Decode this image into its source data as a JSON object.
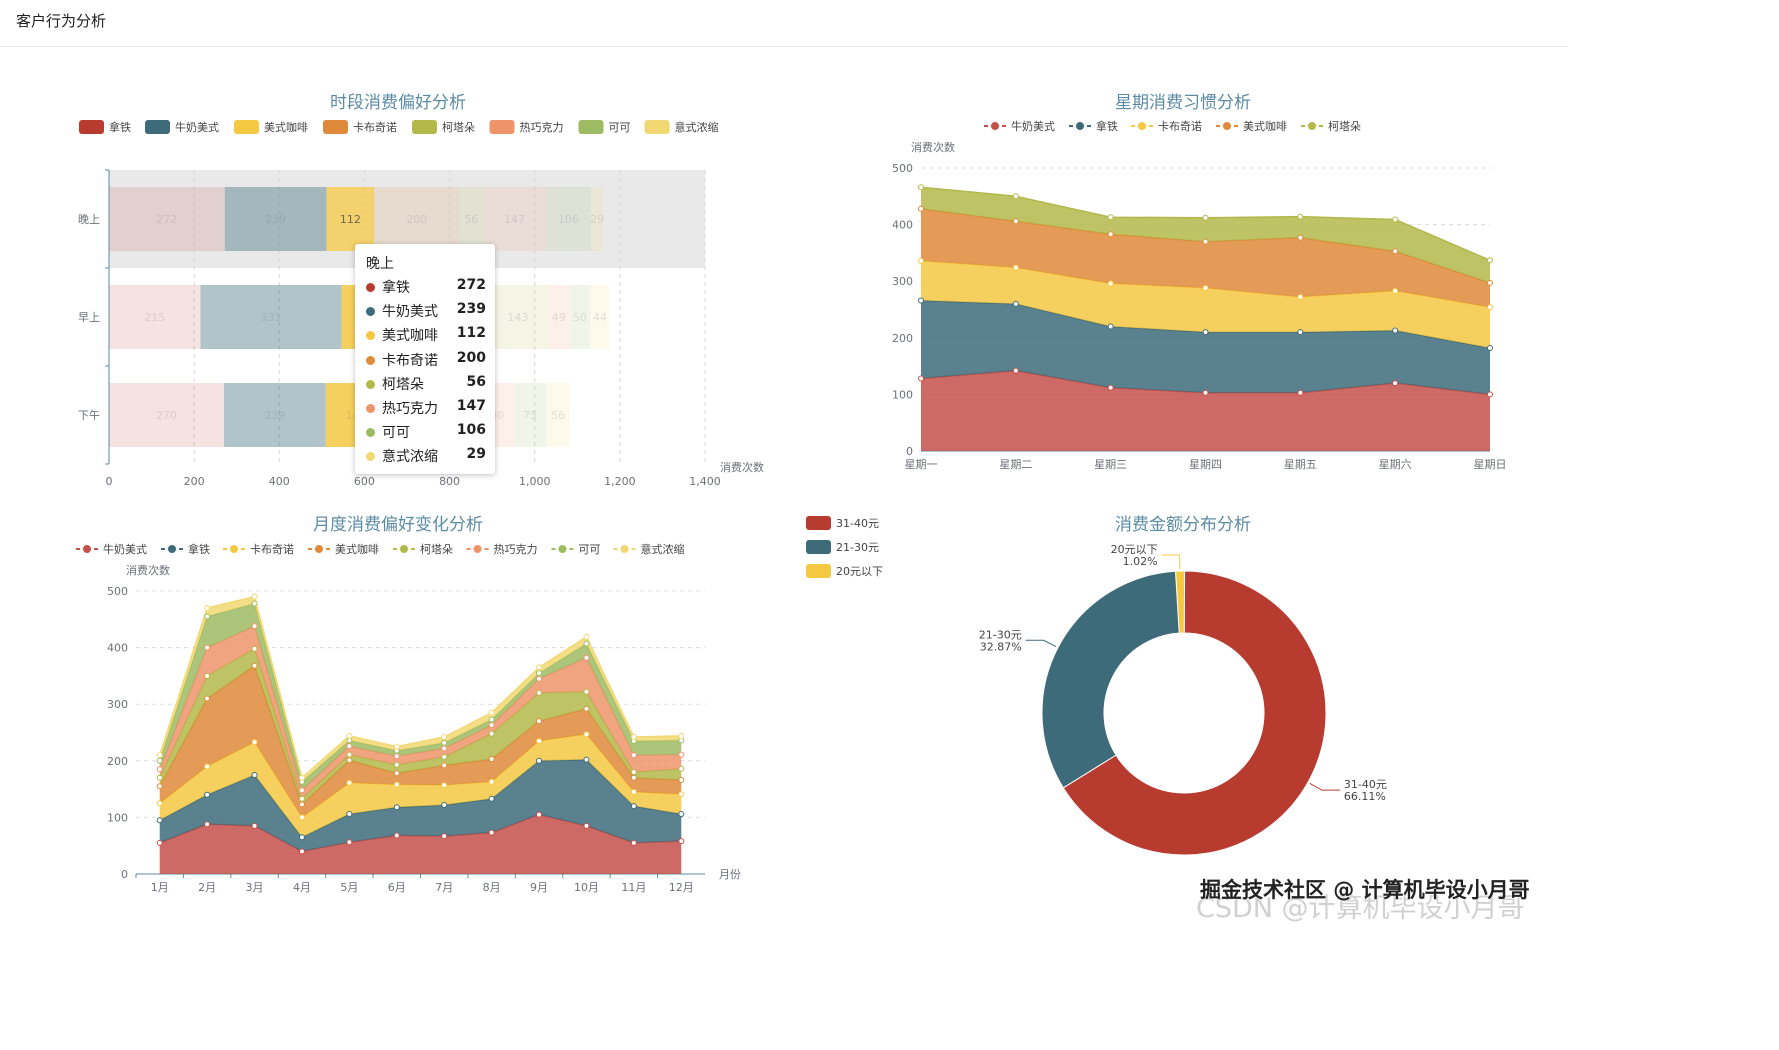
{
  "header": {
    "title": "客户行为分析"
  },
  "watermark": {
    "text": "掘金技术社区 @ 计算机毕设小月哥",
    "faint": "CSDN @计算机毕设小月哥"
  },
  "tooltip": {
    "title": "晚上",
    "rows": [
      {
        "name": "拿铁",
        "value": "272",
        "color": "#b83b30"
      },
      {
        "name": "牛奶美式",
        "value": "239",
        "color": "#3d6b7a"
      },
      {
        "name": "美式咖啡",
        "value": "112",
        "color": "#f5c842"
      },
      {
        "name": "卡布奇诺",
        "value": "200",
        "color": "#de8a3a"
      },
      {
        "name": "柯塔朵",
        "value": "56",
        "color": "#b3b84a"
      },
      {
        "name": "热巧克力",
        "value": "147",
        "color": "#ef946a"
      },
      {
        "name": "可可",
        "value": "106",
        "color": "#9dbb63"
      },
      {
        "name": "意式浓缩",
        "value": "29",
        "color": "#f2d872"
      }
    ]
  },
  "chart_data": [
    {
      "id": "c1",
      "type": "bar",
      "orientation": "horizontal",
      "stacked": true,
      "title": "时段消费偏好分析",
      "categories": [
        "下午",
        "早上",
        "晚上"
      ],
      "series": [
        {
          "name": "拿铁",
          "values": [
            270,
            215,
            272
          ],
          "color": "#b83b30"
        },
        {
          "name": "牛奶美式",
          "values": [
            239,
            331,
            239
          ],
          "color": "#3d6b7a"
        },
        {
          "name": "美式咖啡",
          "values": [
            143,
            163,
            112
          ],
          "color": "#f5c842"
        },
        {
          "name": "卡布奇诺",
          "values": [
            132,
            180,
            200
          ],
          "color": "#de8a3a"
        },
        {
          "name": "柯塔朵",
          "values": [
            88,
            143,
            56
          ],
          "color": "#b3b84a"
        },
        {
          "name": "热巧克力",
          "values": [
            80,
            49,
            147
          ],
          "color": "#ef946a"
        },
        {
          "name": "可可",
          "values": [
            75,
            50,
            106
          ],
          "color": "#9dbb63"
        },
        {
          "name": "意式浓缩",
          "values": [
            56,
            44,
            29
          ],
          "color": "#f2d872"
        }
      ],
      "xlabel": "消费次数",
      "xlim": [
        0,
        1400
      ],
      "xticks": [
        "0",
        "200",
        "400",
        "600",
        "800",
        "1,000",
        "1,200",
        "1,400"
      ],
      "highlighted_category": "晚上"
    },
    {
      "id": "c2",
      "type": "area",
      "stacked": true,
      "title": "星期消费习惯分析",
      "categories": [
        "星期一",
        "星期二",
        "星期三",
        "星期四",
        "星期五",
        "星期六",
        "星期日"
      ],
      "series": [
        {
          "name": "牛奶美式",
          "values": [
            128,
            142,
            112,
            103,
            103,
            120,
            100
          ],
          "color": "#c4504a"
        },
        {
          "name": "拿铁",
          "values": [
            138,
            118,
            108,
            107,
            107,
            93,
            82
          ],
          "color": "#3d6b7a"
        },
        {
          "name": "卡布奇诺",
          "values": [
            70,
            64,
            76,
            78,
            62,
            70,
            72
          ],
          "color": "#f5c842"
        },
        {
          "name": "美式咖啡",
          "values": [
            92,
            82,
            87,
            82,
            105,
            70,
            43
          ],
          "color": "#de8a3a"
        },
        {
          "name": "柯塔朵",
          "values": [
            38,
            44,
            30,
            42,
            37,
            56,
            40
          ],
          "color": "#b3b84a"
        }
      ],
      "ylabel": "消费次数",
      "ylim": [
        0,
        500
      ],
      "yticks": [
        "0",
        "100",
        "200",
        "300",
        "400",
        "500"
      ]
    },
    {
      "id": "c3",
      "type": "area",
      "stacked": true,
      "title": "月度消费偏好变化分析",
      "categories": [
        "1月",
        "2月",
        "3月",
        "4月",
        "5月",
        "6月",
        "7月",
        "8月",
        "9月",
        "10月",
        "11月",
        "12月"
      ],
      "series": [
        {
          "name": "牛奶美式",
          "values": [
            55,
            88,
            85,
            40,
            56,
            68,
            67,
            73,
            105,
            85,
            55,
            58
          ],
          "color": "#c4504a"
        },
        {
          "name": "拿铁",
          "values": [
            40,
            52,
            90,
            25,
            50,
            50,
            55,
            60,
            95,
            117,
            65,
            48
          ],
          "color": "#3d6b7a"
        },
        {
          "name": "卡布奇诺",
          "values": [
            30,
            50,
            58,
            35,
            55,
            40,
            35,
            30,
            35,
            45,
            25,
            35
          ],
          "color": "#f5c842"
        },
        {
          "name": "美式咖啡",
          "values": [
            30,
            120,
            135,
            23,
            40,
            20,
            35,
            40,
            35,
            45,
            25,
            25
          ],
          "color": "#de8a3a"
        },
        {
          "name": "柯塔朵",
          "values": [
            15,
            40,
            30,
            10,
            10,
            15,
            15,
            45,
            50,
            30,
            10,
            20
          ],
          "color": "#b3b84a"
        },
        {
          "name": "热巧克力",
          "values": [
            15,
            50,
            40,
            15,
            15,
            15,
            15,
            15,
            25,
            60,
            30,
            25
          ],
          "color": "#ef946a"
        },
        {
          "name": "可可",
          "values": [
            15,
            55,
            40,
            15,
            10,
            10,
            10,
            10,
            10,
            25,
            25,
            25
          ],
          "color": "#9dbb63"
        },
        {
          "name": "意式浓缩",
          "values": [
            10,
            15,
            12,
            7,
            8,
            7,
            10,
            12,
            10,
            12,
            7,
            8
          ],
          "color": "#f2d872"
        }
      ],
      "xlabel": "月份",
      "ylabel": "消费次数",
      "ylim": [
        0,
        500
      ],
      "yticks": [
        "0",
        "100",
        "200",
        "300",
        "400",
        "500"
      ]
    },
    {
      "id": "c4",
      "type": "pie",
      "donut": true,
      "title": "消费金额分布分析",
      "slices": [
        {
          "name": "31-40元",
          "value": 66.11,
          "label": "66.11%",
          "color": "#b83b30"
        },
        {
          "name": "21-30元",
          "value": 32.87,
          "label": "32.87%",
          "color": "#3d6b7a"
        },
        {
          "name": "20元以下",
          "value": 1.02,
          "label": "1.02%",
          "color": "#f5c842"
        }
      ],
      "legend_position": "top-left"
    }
  ]
}
